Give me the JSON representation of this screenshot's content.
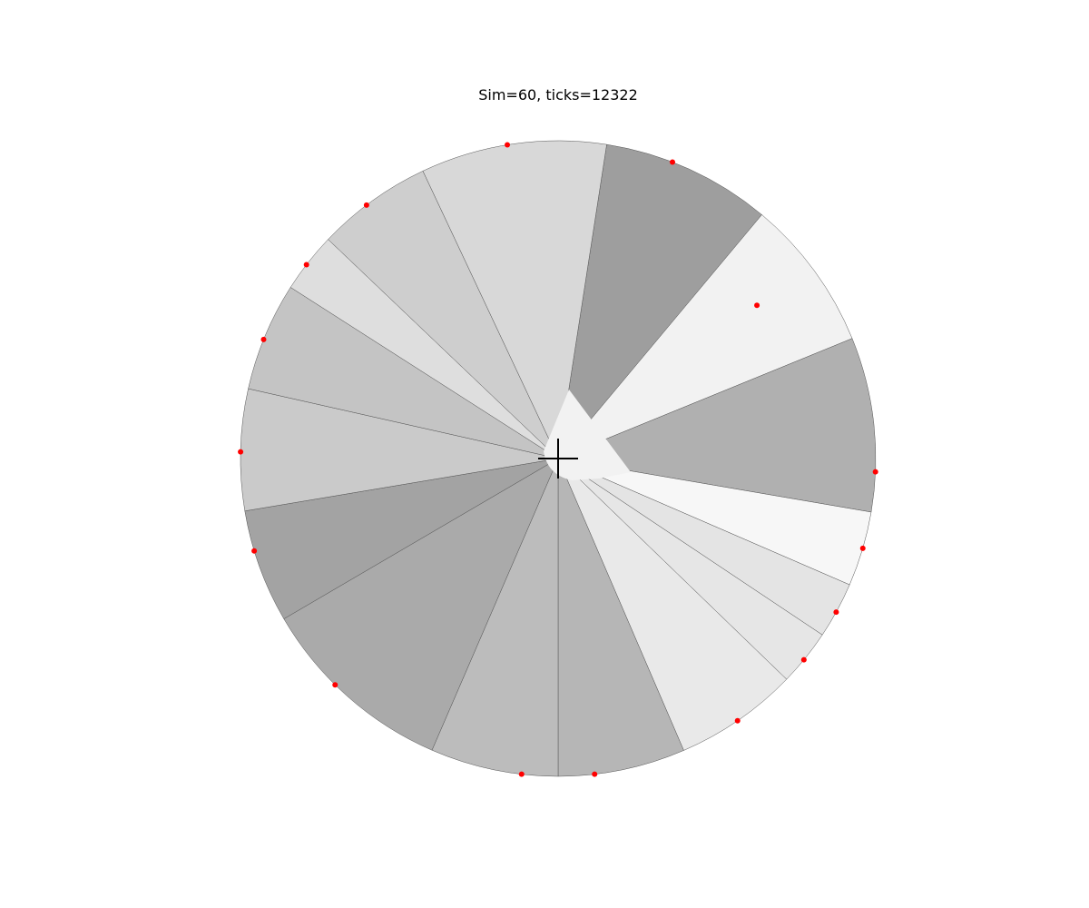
{
  "chart_data": {
    "type": "pie",
    "title": "Sim=60, ticks=12322",
    "center_marker": "crosshair",
    "point_color": "#ff0000",
    "slice_outline_color": "#555555",
    "slices": [
      {
        "start_angle": 81.2,
        "end_angle": 50.1,
        "color": "#9e9e9e",
        "point_angle": 68.9,
        "point_radius": 1.0
      },
      {
        "start_angle": 50.1,
        "end_angle": 22.2,
        "color": "#f2f2f2",
        "point_angle": 37.6,
        "point_radius": 0.79
      },
      {
        "start_angle": 22.2,
        "end_angle": -9.7,
        "color": "#b0b0b0",
        "point_angle": -2.4,
        "point_radius": 1.0
      },
      {
        "start_angle": -9.7,
        "end_angle": -23.4,
        "color": "#f7f7f7",
        "point_angle": -16.4,
        "point_radius": 1.0
      },
      {
        "start_angle": -23.4,
        "end_angle": -33.7,
        "color": "#e4e4e4",
        "point_angle": -28.9,
        "point_radius": 1.0
      },
      {
        "start_angle": -33.7,
        "end_angle": -44.0,
        "color": "#e6e6e6",
        "point_angle": -39.3,
        "point_radius": 1.0
      },
      {
        "start_angle": -44.0,
        "end_angle": -66.7,
        "color": "#e9e9e9",
        "point_angle": -55.6,
        "point_radius": 1.0
      },
      {
        "start_angle": -66.7,
        "end_angle": -90.0,
        "color": "#b6b6b6",
        "point_angle": -83.4,
        "point_radius": 1.0
      },
      {
        "start_angle": -90.0,
        "end_angle": -113.4,
        "color": "#bcbcbc",
        "point_angle": -96.6,
        "point_radius": 1.0
      },
      {
        "start_angle": -113.4,
        "end_angle": -149.7,
        "color": "#aaaaaa",
        "point_angle": -134.6,
        "point_radius": 1.0
      },
      {
        "start_angle": -149.7,
        "end_angle": -170.5,
        "color": "#a3a3a3",
        "point_angle": -163.1,
        "point_radius": 1.0
      },
      {
        "start_angle": -170.5,
        "end_angle": -192.7,
        "color": "#cacaca",
        "point_angle": -181.2,
        "point_radius": 1.0
      },
      {
        "start_angle": -192.7,
        "end_angle": -212.6,
        "color": "#c4c4c4",
        "point_angle": -202.0,
        "point_radius": 1.0
      },
      {
        "start_angle": -212.6,
        "end_angle": -223.6,
        "color": "#dedede",
        "point_angle": -217.6,
        "point_radius": 1.0
      },
      {
        "start_angle": -223.6,
        "end_angle": -244.8,
        "color": "#cecece",
        "point_angle": -232.9,
        "point_radius": 1.0
      },
      {
        "start_angle": -244.8,
        "end_angle": -278.8,
        "color": "#d8d8d8",
        "point_angle": -260.8,
        "point_radius": 1.0
      }
    ]
  }
}
